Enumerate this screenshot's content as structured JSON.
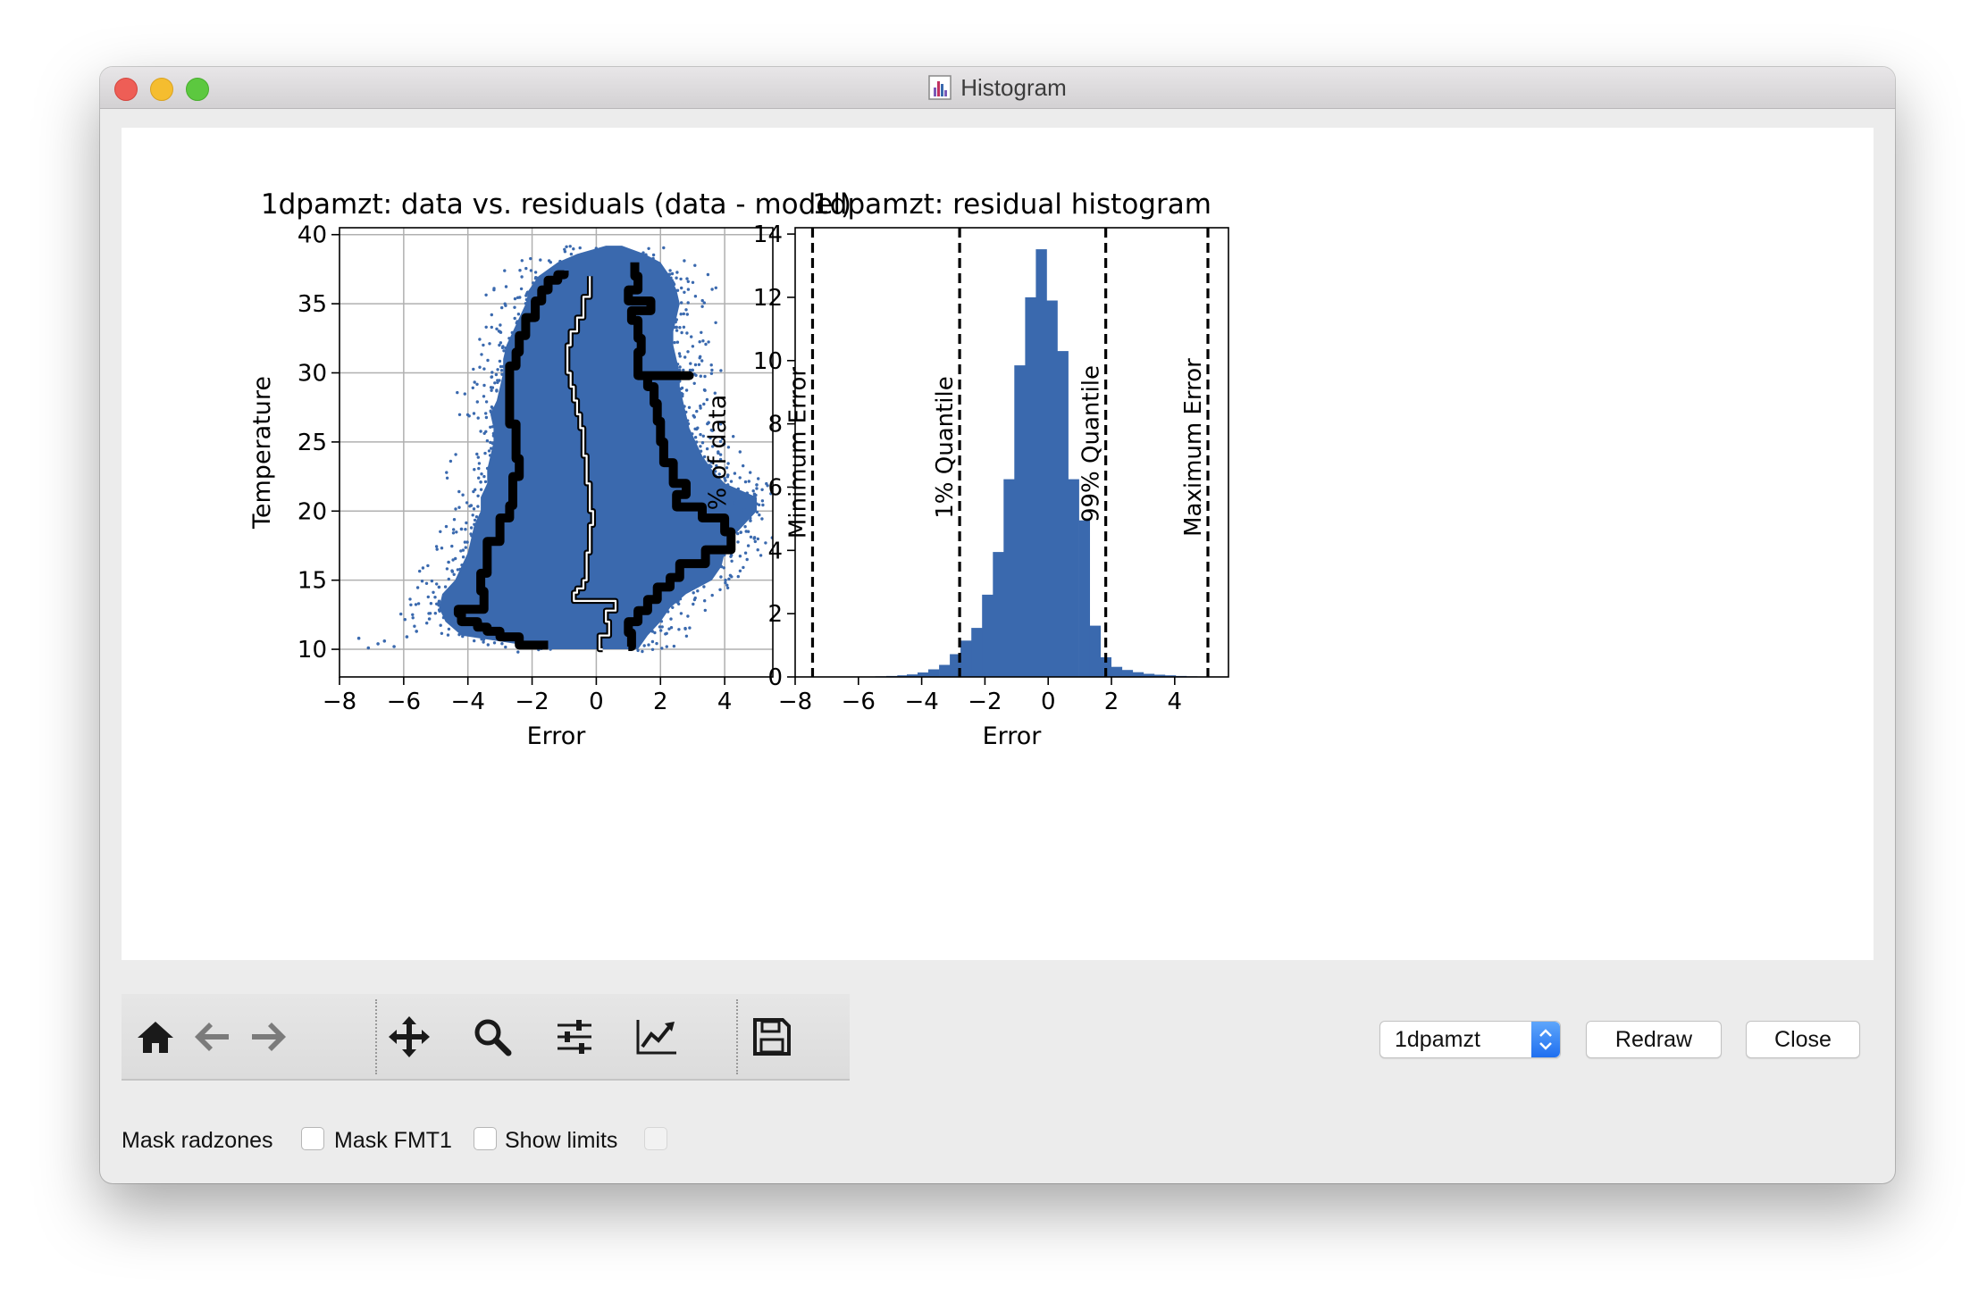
{
  "window": {
    "title": "Histogram",
    "app_icon": "histogram-app-icon"
  },
  "toolbar": {
    "icons": [
      "home-icon",
      "back-arrow-icon",
      "forward-arrow-icon",
      "pan-icon",
      "zoom-icon",
      "configure-subplots-icon",
      "edit-axis-icon",
      "save-icon"
    ]
  },
  "controls": {
    "msid_selected": "1dpamzt",
    "redraw_label": "Redraw",
    "close_label": "Close",
    "mask_radzones_label": "Mask radzones",
    "mask_fmt1_label": "Mask FMT1",
    "show_limits_label": "Show limits"
  },
  "colors": {
    "series": "#3a69ae",
    "boundary": "#000000",
    "window_bg": "#ececec"
  },
  "chart_data": [
    {
      "type": "scatter",
      "title": "1dpamzt: data vs. residuals (data - model)",
      "xlabel": "Error",
      "ylabel": "Temperature",
      "xlim": [
        -8,
        5.5
      ],
      "ylim": [
        8,
        40.5
      ],
      "xticks": [
        -8,
        -6,
        -4,
        -2,
        0,
        2,
        4
      ],
      "xtick_labels": [
        "−8",
        "−6",
        "−4",
        "−2",
        "0",
        "2",
        "4"
      ],
      "yticks": [
        10,
        15,
        20,
        25,
        30,
        35,
        40
      ],
      "ytick_labels": [
        "10",
        "15",
        "20",
        "25",
        "30",
        "35",
        "40"
      ],
      "grid": true,
      "envelope": {
        "y": [
          10,
          11,
          12,
          13,
          14,
          15,
          16,
          17,
          18,
          19,
          20,
          21,
          22,
          23,
          24,
          25,
          26,
          27,
          28,
          29,
          30,
          31,
          32,
          33,
          34,
          35,
          36,
          37,
          38,
          38.6,
          39.2
        ],
        "xmin": [
          -1.4,
          -4.2,
          -4.7,
          -4.9,
          -4.8,
          -4.4,
          -4.2,
          -4.0,
          -3.9,
          -3.8,
          -3.6,
          -3.6,
          -3.4,
          -3.4,
          -3.3,
          -3.2,
          -3.2,
          -3.3,
          -3.1,
          -3.0,
          -2.9,
          -2.9,
          -2.8,
          -2.6,
          -2.4,
          -2.2,
          -2.1,
          -1.8,
          -1.2,
          -0.6,
          0.3
        ],
        "xmax": [
          1.3,
          1.6,
          2.0,
          2.3,
          2.8,
          3.6,
          3.9,
          4.0,
          4.2,
          4.6,
          5.0,
          5.0,
          4.0,
          3.6,
          3.3,
          3.1,
          2.9,
          2.8,
          2.7,
          2.6,
          2.6,
          2.5,
          2.4,
          2.4,
          2.5,
          2.6,
          2.5,
          2.3,
          2.0,
          1.5,
          0.8
        ]
      },
      "quantile_1": {
        "x": [
          -1.5,
          -2.4,
          -3.0,
          -3.4,
          -3.7,
          -4.2,
          -4.3,
          -3.5,
          -3.6,
          -3.4,
          -3.4,
          -3.0,
          -3.0,
          -2.7,
          -2.6,
          -2.6,
          -2.4,
          -2.5,
          -2.5,
          -2.7,
          -2.7,
          -2.7,
          -2.5,
          -2.4,
          -2.2,
          -1.9,
          -1.7,
          -1.5,
          -1.2,
          -1.0
        ],
        "y": [
          10.3,
          10.9,
          11.3,
          11.6,
          12.0,
          12.6,
          12.9,
          14.2,
          15.5,
          16.8,
          17.8,
          18.6,
          19.5,
          20.4,
          21.3,
          22.5,
          23.8,
          25.0,
          26.3,
          27.8,
          29.3,
          30.5,
          31.5,
          32.7,
          34.0,
          35.2,
          36.0,
          36.7,
          37.1,
          37.4
        ]
      },
      "median": {
        "x": [
          0.2,
          0.1,
          0.4,
          0.3,
          0.6,
          -0.7,
          -0.6,
          -0.4,
          -0.3,
          -0.3,
          -0.2,
          -0.2,
          -0.1,
          -0.2,
          -0.2,
          -0.3,
          -0.3,
          -0.4,
          -0.4,
          -0.5,
          -0.6,
          -0.7,
          -0.8,
          -0.9,
          -0.9,
          -0.8,
          -0.6,
          -0.4,
          -0.2
        ],
        "y": [
          10.0,
          11.0,
          12.0,
          12.8,
          13.5,
          14.1,
          14.4,
          15.0,
          16.0,
          17.0,
          18.0,
          19.0,
          20.0,
          21.0,
          22.0,
          23.0,
          24.0,
          25.0,
          26.0,
          27.0,
          28.0,
          29.0,
          30.0,
          31.0,
          32.0,
          33.0,
          34.0,
          35.5,
          37.0
        ]
      },
      "quantile_99": {
        "x": [
          1.0,
          1.1,
          1.0,
          1.3,
          1.6,
          1.9,
          2.3,
          2.6,
          3.4,
          4.2,
          4.0,
          3.3,
          2.5,
          2.8,
          2.4,
          2.1,
          2.0,
          1.9,
          1.8,
          1.6,
          2.9,
          1.3,
          1.4,
          1.3,
          1.1,
          1.7,
          1.0,
          1.3,
          1.2
        ],
        "y": [
          10.2,
          11.2,
          12.0,
          12.8,
          13.6,
          14.5,
          15.2,
          16.2,
          17.2,
          18.5,
          19.5,
          20.3,
          21.2,
          22.0,
          23.5,
          25.0,
          26.5,
          27.8,
          29.0,
          29.8,
          29.8,
          31.5,
          32.5,
          33.8,
          34.5,
          35.2,
          36.0,
          37.0,
          38.0
        ]
      }
    },
    {
      "type": "bar",
      "title": "1dpamzt: residual histogram",
      "xlabel": "Error",
      "ylabel": "% of data",
      "xlim": [
        -8,
        5.7
      ],
      "ylim": [
        0,
        14.2
      ],
      "xticks": [
        -8,
        -6,
        -4,
        -2,
        0,
        2,
        4
      ],
      "xtick_labels": [
        "−8",
        "−6",
        "−4",
        "−2",
        "0",
        "2",
        "4"
      ],
      "yticks": [
        0,
        2,
        4,
        6,
        8,
        10,
        12,
        14
      ],
      "ytick_labels": [
        "0",
        "2",
        "4",
        "6",
        "8",
        "10",
        "12",
        "14"
      ],
      "bin_width": 0.34,
      "bin_centers": [
        -6.0,
        -5.7,
        -5.3,
        -4.95,
        -4.6,
        -4.3,
        -3.96,
        -3.62,
        -3.28,
        -2.94,
        -2.6,
        -2.26,
        -1.92,
        -1.58,
        -1.24,
        -0.9,
        -0.56,
        -0.22,
        0.12,
        0.46,
        0.8,
        1.14,
        1.48,
        1.82,
        2.16,
        2.5,
        2.84,
        3.18,
        3.52,
        3.86,
        4.2,
        4.54
      ],
      "values": [
        0.01,
        0.01,
        0.02,
        0.03,
        0.05,
        0.08,
        0.14,
        0.24,
        0.38,
        0.72,
        1.15,
        1.55,
        2.6,
        3.95,
        6.25,
        9.85,
        12.0,
        13.52,
        11.9,
        10.3,
        6.25,
        4.95,
        1.62,
        0.62,
        0.32,
        0.22,
        0.15,
        0.1,
        0.07,
        0.05,
        0.03,
        0.02
      ],
      "vlines": [
        {
          "x": -7.45,
          "label": "Minimum Error"
        },
        {
          "x": -2.8,
          "label": "1% Quantile"
        },
        {
          "x": 1.82,
          "label": "99% Quantile"
        },
        {
          "x": 5.05,
          "label": "Maximum Error"
        }
      ]
    }
  ]
}
